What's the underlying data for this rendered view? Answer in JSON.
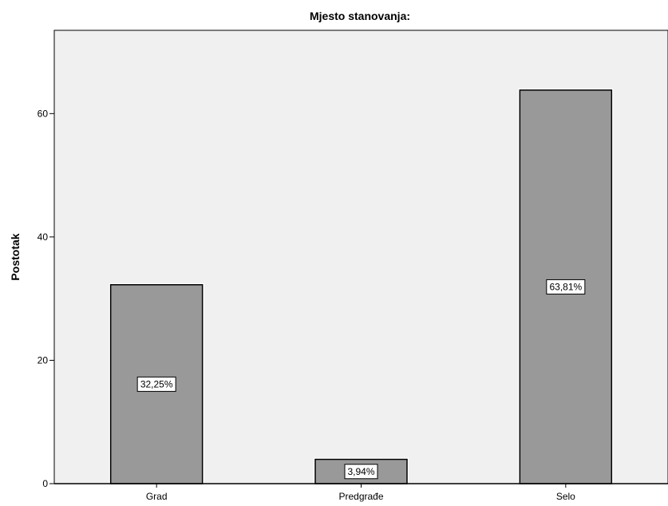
{
  "chart_data": {
    "type": "bar",
    "title": "Mjesto stanovanja:",
    "xlabel": "",
    "ylabel": "Postotak",
    "categories": [
      "Grad",
      "Predgrađe",
      "Selo"
    ],
    "values": [
      32.25,
      3.94,
      63.81
    ],
    "data_labels": [
      "32,25%",
      "3,94%",
      "63,81%"
    ],
    "ylim": [
      0,
      73.5
    ],
    "yticks": [
      0,
      20,
      40,
      60
    ],
    "grid": false,
    "legend": "none",
    "colors": {
      "plot_background": "#f0f0f0",
      "bar_fill": "#999999",
      "bar_stroke": "#000000",
      "label_box": "#ffffff"
    }
  }
}
